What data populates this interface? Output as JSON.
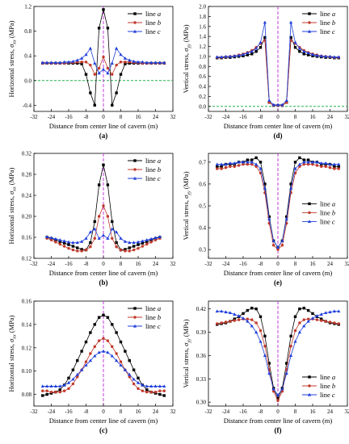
{
  "chart_data": [
    {
      "type": "line",
      "panel_label": "(a)",
      "xlabel": "Distance from center line of cavern (m)",
      "ylabel": "Horizontal stress, σ_xx (MPa)",
      "xlim": [
        -32,
        32
      ],
      "ylim": [
        -0.5,
        1.2
      ],
      "xticks": [
        "-32",
        "-24",
        "-16",
        "-8",
        "0",
        "8",
        "16",
        "24",
        "32"
      ],
      "yticks": [
        "-0.4",
        "0.0",
        "0.4",
        "0.8",
        "1.2"
      ],
      "reference_lines": {
        "vertical_x": 0,
        "horizontal_y": 0
      },
      "legend_position": "top-right",
      "x": [
        -28,
        -26,
        -24,
        -22,
        -20,
        -18,
        -16,
        -14,
        -12,
        -10,
        -8,
        -6,
        -4,
        -2,
        0,
        2,
        4,
        6,
        8,
        10,
        12,
        14,
        16,
        18,
        20,
        22,
        24,
        26,
        28
      ],
      "series": [
        {
          "name": "line a",
          "color": "#000000",
          "marker": "square",
          "values": [
            0.28,
            0.28,
            0.28,
            0.28,
            0.28,
            0.28,
            0.28,
            0.28,
            0.28,
            0.27,
            0.1,
            -0.2,
            -0.4,
            0.85,
            1.15,
            0.85,
            -0.4,
            -0.2,
            0.1,
            0.27,
            0.28,
            0.28,
            0.28,
            0.28,
            0.28,
            0.28,
            0.28,
            0.28,
            0.28
          ]
        },
        {
          "name": "line b",
          "color": "#c0392b",
          "marker": "circle",
          "values": [
            0.28,
            0.28,
            0.28,
            0.28,
            0.28,
            0.28,
            0.29,
            0.29,
            0.3,
            0.3,
            0.3,
            0.25,
            0.1,
            0.2,
            0.38,
            0.2,
            0.1,
            0.25,
            0.3,
            0.3,
            0.3,
            0.29,
            0.29,
            0.28,
            0.28,
            0.28,
            0.28,
            0.28,
            0.28
          ]
        },
        {
          "name": "line c",
          "color": "#1f3fdb",
          "marker": "triangle",
          "values": [
            0.29,
            0.29,
            0.29,
            0.29,
            0.29,
            0.3,
            0.3,
            0.31,
            0.33,
            0.36,
            0.42,
            0.52,
            0.28,
            0.12,
            0.18,
            0.12,
            0.28,
            0.52,
            0.42,
            0.36,
            0.33,
            0.31,
            0.3,
            0.3,
            0.29,
            0.29,
            0.29,
            0.29,
            0.29
          ]
        }
      ]
    },
    {
      "type": "line",
      "panel_label": "(d)",
      "xlabel": "Distance from center line of cavern (m)",
      "ylabel": "Vertical stress, σ_yy (MPa)",
      "xlim": [
        -32,
        32
      ],
      "ylim": [
        -0.1,
        2.0
      ],
      "xticks": [
        "-32",
        "-24",
        "-16",
        "-8",
        "0",
        "8",
        "16",
        "24",
        "32"
      ],
      "yticks": [
        "0.0",
        "0.2",
        "0.4",
        "0.6",
        "0.8",
        "1.0",
        "1.2",
        "1.4",
        "1.6",
        "1.8",
        "2.0"
      ],
      "reference_lines": {
        "vertical_x": 0,
        "horizontal_y": 0
      },
      "legend_position": "top-right",
      "x": [
        -28,
        -26,
        -24,
        -22,
        -20,
        -18,
        -16,
        -14,
        -12,
        -10,
        -8,
        -6,
        -4,
        -2,
        0,
        2,
        4,
        6,
        8,
        10,
        12,
        14,
        16,
        18,
        20,
        22,
        24,
        26,
        28
      ],
      "series": [
        {
          "name": "line a",
          "color": "#000000",
          "marker": "square",
          "values": [
            0.97,
            0.97,
            0.98,
            0.98,
            0.99,
            1.0,
            1.01,
            1.03,
            1.05,
            1.1,
            1.18,
            1.38,
            0.08,
            0.02,
            0.02,
            0.02,
            0.08,
            1.38,
            1.18,
            1.1,
            1.05,
            1.03,
            1.01,
            1.0,
            0.99,
            0.98,
            0.98,
            0.97,
            0.97
          ]
        },
        {
          "name": "line b",
          "color": "#c0392b",
          "marker": "circle",
          "values": [
            0.98,
            0.98,
            0.99,
            1.0,
            1.01,
            1.03,
            1.05,
            1.08,
            1.12,
            1.18,
            1.26,
            1.32,
            0.08,
            0.02,
            0.02,
            0.02,
            0.08,
            1.32,
            1.26,
            1.18,
            1.12,
            1.08,
            1.05,
            1.03,
            1.01,
            1.0,
            0.99,
            0.98,
            0.98
          ]
        },
        {
          "name": "line c",
          "color": "#1f3fdb",
          "marker": "triangle",
          "values": [
            0.99,
            0.99,
            1.0,
            1.0,
            1.01,
            1.02,
            1.04,
            1.07,
            1.1,
            1.16,
            1.28,
            1.68,
            0.12,
            0.03,
            0.03,
            0.03,
            0.12,
            1.68,
            1.28,
            1.16,
            1.1,
            1.07,
            1.04,
            1.02,
            1.01,
            1.0,
            1.0,
            0.99,
            0.99
          ]
        }
      ]
    },
    {
      "type": "line",
      "panel_label": "(b)",
      "xlabel": "Distance from center line of cavern (m)",
      "ylabel": "Horizontal stress, σ_xx (MPa)",
      "xlim": [
        -32,
        32
      ],
      "ylim": [
        0.12,
        0.32
      ],
      "xticks": [
        "-32",
        "-24",
        "-16",
        "-8",
        "0",
        "8",
        "16",
        "24",
        "32"
      ],
      "yticks": [
        "0.12",
        "0.16",
        "0.20",
        "0.24",
        "0.28",
        "0.32"
      ],
      "reference_lines": {
        "vertical_x": 0
      },
      "legend_position": "top-right",
      "x": [
        -26,
        -24,
        -22,
        -20,
        -18,
        -16,
        -14,
        -12,
        -10,
        -8,
        -6,
        -4,
        -2,
        0,
        2,
        4,
        6,
        8,
        10,
        12,
        14,
        16,
        18,
        20,
        22,
        24,
        26
      ],
      "series": [
        {
          "name": "line a",
          "color": "#000000",
          "marker": "square",
          "values": [
            0.16,
            0.158,
            0.155,
            0.152,
            0.149,
            0.146,
            0.143,
            0.14,
            0.137,
            0.136,
            0.15,
            0.19,
            0.26,
            0.298,
            0.26,
            0.19,
            0.15,
            0.136,
            0.137,
            0.14,
            0.143,
            0.146,
            0.149,
            0.152,
            0.155,
            0.158,
            0.16
          ]
        },
        {
          "name": "line b",
          "color": "#c0392b",
          "marker": "circle",
          "values": [
            0.158,
            0.155,
            0.151,
            0.147,
            0.143,
            0.139,
            0.136,
            0.134,
            0.134,
            0.136,
            0.142,
            0.158,
            0.2,
            0.22,
            0.2,
            0.158,
            0.142,
            0.136,
            0.134,
            0.134,
            0.136,
            0.139,
            0.143,
            0.147,
            0.151,
            0.155,
            0.158
          ]
        },
        {
          "name": "line c",
          "color": "#1f3fdb",
          "marker": "triangle",
          "values": [
            0.161,
            0.159,
            0.157,
            0.155,
            0.153,
            0.151,
            0.15,
            0.15,
            0.152,
            0.158,
            0.17,
            0.176,
            0.158,
            0.164,
            0.158,
            0.176,
            0.17,
            0.158,
            0.152,
            0.15,
            0.15,
            0.151,
            0.153,
            0.155,
            0.157,
            0.159,
            0.161
          ]
        }
      ]
    },
    {
      "type": "line",
      "panel_label": "(e)",
      "xlabel": "Distance from center line of cavern (m)",
      "ylabel": "Vertical stress, σ_yy (MPa)",
      "xlim": [
        -32,
        32
      ],
      "ylim": [
        0.26,
        0.74
      ],
      "xticks": [
        "-32",
        "-24",
        "-16",
        "-8",
        "0",
        "8",
        "16",
        "24",
        "32"
      ],
      "yticks": [
        "0.3",
        "0.4",
        "0.5",
        "0.6",
        "0.7"
      ],
      "reference_lines": {
        "vertical_x": 0
      },
      "legend_position": "right",
      "x": [
        -28,
        -26,
        -24,
        -22,
        -20,
        -18,
        -16,
        -14,
        -12,
        -10,
        -8,
        -6,
        -4,
        -2,
        0,
        2,
        4,
        6,
        8,
        10,
        12,
        14,
        16,
        18,
        20,
        22,
        24,
        26,
        28
      ],
      "series": [
        {
          "name": "line a",
          "color": "#000000",
          "marker": "square",
          "values": [
            0.68,
            0.68,
            0.69,
            0.69,
            0.69,
            0.7,
            0.7,
            0.71,
            0.71,
            0.72,
            0.7,
            0.6,
            0.45,
            0.34,
            0.31,
            0.34,
            0.45,
            0.6,
            0.7,
            0.72,
            0.71,
            0.71,
            0.7,
            0.7,
            0.69,
            0.69,
            0.69,
            0.68,
            0.68
          ]
        },
        {
          "name": "line b",
          "color": "#c0392b",
          "marker": "circle",
          "values": [
            0.67,
            0.67,
            0.675,
            0.68,
            0.68,
            0.685,
            0.69,
            0.69,
            0.69,
            0.68,
            0.65,
            0.56,
            0.42,
            0.32,
            0.3,
            0.32,
            0.42,
            0.56,
            0.65,
            0.68,
            0.69,
            0.69,
            0.69,
            0.685,
            0.68,
            0.68,
            0.675,
            0.67,
            0.67
          ]
        },
        {
          "name": "line c",
          "color": "#1f3fdb",
          "marker": "triangle",
          "values": [
            0.69,
            0.69,
            0.69,
            0.695,
            0.695,
            0.7,
            0.7,
            0.7,
            0.7,
            0.69,
            0.67,
            0.58,
            0.44,
            0.34,
            0.31,
            0.34,
            0.44,
            0.58,
            0.67,
            0.69,
            0.7,
            0.7,
            0.7,
            0.7,
            0.695,
            0.695,
            0.69,
            0.69,
            0.69
          ]
        }
      ]
    },
    {
      "type": "line",
      "panel_label": "(c)",
      "xlabel": "Distance from center line of cavern (m)",
      "ylabel": "Horizontal stress, σ_xx (MPa)",
      "xlim": [
        -32,
        32
      ],
      "ylim": [
        0.07,
        0.16
      ],
      "xticks": [
        "-32",
        "-24",
        "-16",
        "-8",
        "0",
        "8",
        "16",
        "24",
        "32"
      ],
      "yticks": [
        "0.08",
        "0.10",
        "0.12",
        "0.14",
        "0.16"
      ],
      "reference_lines": {
        "vertical_x": 0
      },
      "legend_position": "top-right",
      "x": [
        -28,
        -26,
        -24,
        -22,
        -20,
        -18,
        -16,
        -14,
        -12,
        -10,
        -8,
        -6,
        -4,
        -2,
        0,
        2,
        4,
        6,
        8,
        10,
        12,
        14,
        16,
        18,
        20,
        22,
        24,
        26,
        28
      ],
      "series": [
        {
          "name": "line a",
          "color": "#000000",
          "marker": "square",
          "values": [
            0.079,
            0.08,
            0.081,
            0.082,
            0.084,
            0.088,
            0.094,
            0.101,
            0.109,
            0.117,
            0.125,
            0.133,
            0.14,
            0.146,
            0.148,
            0.146,
            0.14,
            0.133,
            0.125,
            0.117,
            0.109,
            0.101,
            0.094,
            0.088,
            0.084,
            0.082,
            0.081,
            0.08,
            0.079
          ]
        },
        {
          "name": "line b",
          "color": "#c0392b",
          "marker": "circle",
          "values": [
            0.083,
            0.083,
            0.082,
            0.082,
            0.082,
            0.083,
            0.085,
            0.089,
            0.095,
            0.101,
            0.108,
            0.115,
            0.121,
            0.126,
            0.128,
            0.126,
            0.121,
            0.115,
            0.108,
            0.101,
            0.095,
            0.089,
            0.085,
            0.083,
            0.082,
            0.082,
            0.082,
            0.083,
            0.083
          ]
        },
        {
          "name": "line c",
          "color": "#1f3fdb",
          "marker": "triangle",
          "values": [
            0.087,
            0.087,
            0.087,
            0.087,
            0.087,
            0.088,
            0.09,
            0.093,
            0.097,
            0.101,
            0.105,
            0.109,
            0.113,
            0.116,
            0.117,
            0.116,
            0.113,
            0.109,
            0.105,
            0.101,
            0.097,
            0.093,
            0.09,
            0.088,
            0.087,
            0.087,
            0.087,
            0.087,
            0.087
          ]
        }
      ]
    },
    {
      "type": "line",
      "panel_label": "(f)",
      "xlabel": "Distance from center line of cavern (m)",
      "ylabel": "Vertical stress, σ_yy (MPa)",
      "xlim": [
        -32,
        32
      ],
      "ylim": [
        0.295,
        0.43
      ],
      "xticks": [
        "-32",
        "-24",
        "-16",
        "-8",
        "0",
        "8",
        "16",
        "24",
        "32"
      ],
      "yticks": [
        "0.30",
        "0.33",
        "0.36",
        "0.39",
        "0.42"
      ],
      "reference_lines": {
        "vertical_x": 0
      },
      "legend_position": "bottom-right",
      "x": [
        -28,
        -26,
        -24,
        -22,
        -20,
        -18,
        -16,
        -14,
        -12,
        -10,
        -8,
        -6,
        -4,
        -2,
        0,
        2,
        4,
        6,
        8,
        10,
        12,
        14,
        16,
        18,
        20,
        22,
        24,
        26,
        28
      ],
      "series": [
        {
          "name": "line a",
          "color": "#000000",
          "marker": "square",
          "values": [
            0.4,
            0.401,
            0.402,
            0.404,
            0.407,
            0.41,
            0.414,
            0.418,
            0.421,
            0.42,
            0.41,
            0.385,
            0.35,
            0.318,
            0.305,
            0.318,
            0.35,
            0.385,
            0.41,
            0.42,
            0.421,
            0.418,
            0.414,
            0.41,
            0.407,
            0.404,
            0.402,
            0.401,
            0.4
          ]
        },
        {
          "name": "line b",
          "color": "#c0392b",
          "marker": "circle",
          "values": [
            0.401,
            0.402,
            0.403,
            0.404,
            0.405,
            0.406,
            0.407,
            0.407,
            0.406,
            0.402,
            0.392,
            0.372,
            0.342,
            0.314,
            0.302,
            0.314,
            0.342,
            0.372,
            0.392,
            0.402,
            0.406,
            0.407,
            0.407,
            0.406,
            0.405,
            0.404,
            0.403,
            0.402,
            0.401
          ]
        },
        {
          "name": "line c",
          "color": "#1f3fdb",
          "marker": "triangle",
          "values": [
            0.417,
            0.417,
            0.416,
            0.415,
            0.413,
            0.411,
            0.408,
            0.404,
            0.398,
            0.39,
            0.378,
            0.36,
            0.337,
            0.317,
            0.309,
            0.317,
            0.337,
            0.36,
            0.378,
            0.39,
            0.398,
            0.404,
            0.408,
            0.411,
            0.413,
            0.415,
            0.416,
            0.417,
            0.417
          ]
        }
      ]
    }
  ]
}
